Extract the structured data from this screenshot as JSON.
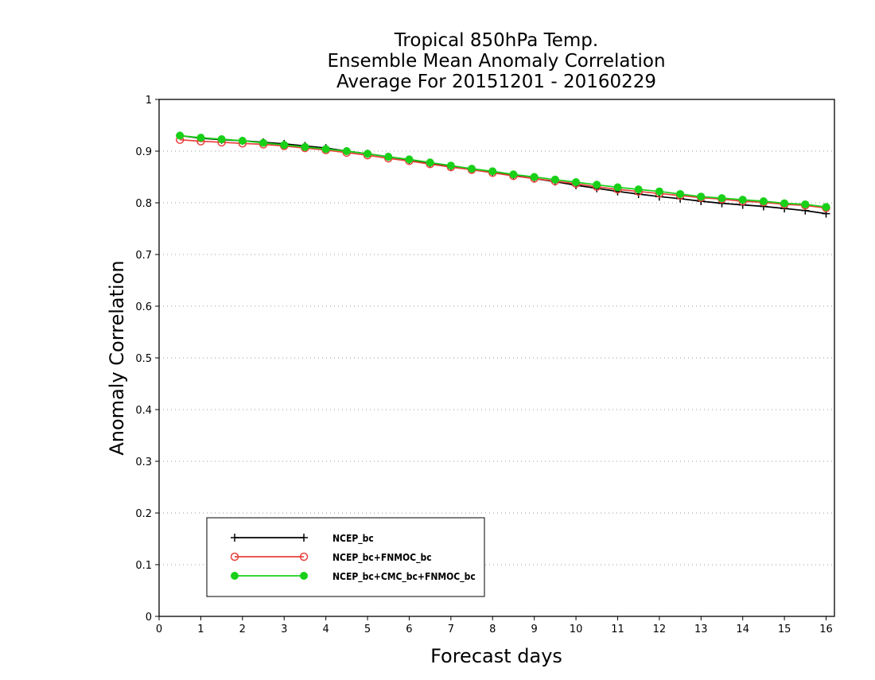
{
  "chart_data": {
    "type": "line",
    "title": [
      "Tropical 850hPa Temp.",
      "Ensemble Mean Anomaly Correlation",
      "Average For 20151201 - 20160229"
    ],
    "xlabel": "Forecast days",
    "ylabel": "Anomaly Correlation",
    "xlim": [
      0,
      16.2
    ],
    "ylim": [
      0,
      1
    ],
    "xticks": [
      0,
      1,
      2,
      3,
      4,
      5,
      6,
      7,
      8,
      9,
      10,
      11,
      12,
      13,
      14,
      15,
      16
    ],
    "yticks": [
      0,
      0.1,
      0.2,
      0.3,
      0.4,
      0.5,
      0.6,
      0.7,
      0.8,
      0.9,
      1
    ],
    "grid": "dotted horizontal",
    "legend_position": "bottom-left",
    "x": [
      0.5,
      1,
      1.5,
      2,
      2.5,
      3,
      3.5,
      4,
      4.5,
      5,
      5.5,
      6,
      6.5,
      7,
      7.5,
      8,
      8.5,
      9,
      9.5,
      10,
      10.5,
      11,
      11.5,
      12,
      12.5,
      13,
      13.5,
      14,
      14.5,
      15,
      15.5,
      16
    ],
    "series": [
      {
        "name": "NCEP_bc",
        "color": "#000000",
        "marker": "plus",
        "values": [
          0.93,
          0.925,
          0.922,
          0.92,
          0.917,
          0.914,
          0.91,
          0.906,
          0.9,
          0.895,
          0.889,
          0.883,
          0.877,
          0.871,
          0.865,
          0.859,
          0.853,
          0.847,
          0.841,
          0.834,
          0.828,
          0.822,
          0.817,
          0.812,
          0.808,
          0.803,
          0.799,
          0.796,
          0.793,
          0.789,
          0.785,
          0.779
        ]
      },
      {
        "name": "NCEP_bc+FNMOC_bc",
        "color": "#e8413c",
        "marker": "open-circle",
        "values": [
          0.922,
          0.919,
          0.917,
          0.915,
          0.913,
          0.91,
          0.906,
          0.902,
          0.897,
          0.892,
          0.886,
          0.881,
          0.875,
          0.869,
          0.864,
          0.858,
          0.852,
          0.847,
          0.842,
          0.837,
          0.831,
          0.826,
          0.822,
          0.818,
          0.814,
          0.81,
          0.807,
          0.803,
          0.801,
          0.797,
          0.795,
          0.79
        ]
      },
      {
        "name": "NCEP_bc+CMC_bc+FNMOC_bc",
        "color": "#19d019",
        "marker": "filled-circle",
        "values": [
          0.93,
          0.926,
          0.923,
          0.92,
          0.916,
          0.912,
          0.908,
          0.904,
          0.9,
          0.895,
          0.889,
          0.884,
          0.878,
          0.872,
          0.866,
          0.861,
          0.855,
          0.85,
          0.845,
          0.84,
          0.835,
          0.83,
          0.826,
          0.822,
          0.817,
          0.812,
          0.809,
          0.806,
          0.803,
          0.799,
          0.797,
          0.792
        ]
      }
    ]
  }
}
